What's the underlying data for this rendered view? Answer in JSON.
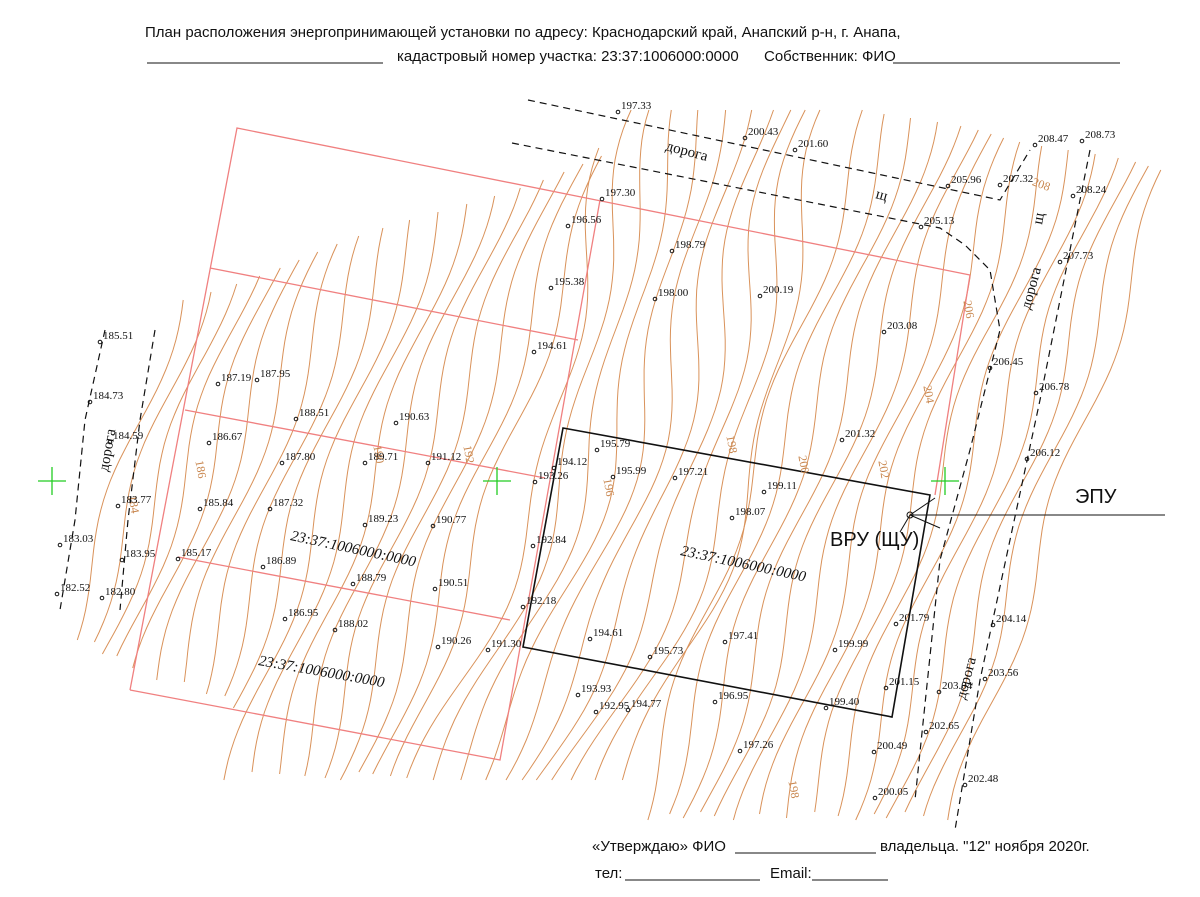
{
  "header": {
    "line1": "План расположения энергопринимающей установки по адресу: Краснодарский край, Анапский р-н, г. Анапа,",
    "cadastral": "кадастровый номер участка: 23:37:1006000:0000",
    "owner": "Собственник: ФИО"
  },
  "labels": {
    "epu": "ЭПУ",
    "vru": "ВРУ (ЩУ)"
  },
  "parcels": [
    "23:37:1006000:0000",
    "23:37:1006000:0000",
    "23:37:1006000:0000"
  ],
  "roads": [
    "дорога",
    "дорога",
    "дорога",
    "дорога"
  ],
  "shch": [
    "щ",
    "щ"
  ],
  "contour_labels": [
    "184",
    "186",
    "190",
    "192",
    "196",
    "198",
    "200",
    "202",
    "204",
    "206",
    "208",
    "198"
  ],
  "elevations": [
    "197.33",
    "200.43",
    "201.60",
    "208.47",
    "208.73",
    "205.96",
    "207.32",
    "208.24",
    "197.30",
    "196.56",
    "205.13",
    "198.79",
    "207.73",
    "195.38",
    "198.00",
    "200.19",
    "203.08",
    "194.61",
    "206.45",
    "187.19",
    "187.95",
    "185.51",
    "184.73",
    "206.78",
    "188.51",
    "190.63",
    "184.59",
    "186.67",
    "201.32",
    "195.79",
    "187.80",
    "189.71",
    "191.12",
    "194.12",
    "206.12",
    "195.99",
    "197.21",
    "193.26",
    "199.11",
    "183.77",
    "185.84",
    "187.32",
    "198.07",
    "190.77",
    "189.23",
    "183.03",
    "192.84",
    "183.95",
    "185.17",
    "186.89",
    "188.79",
    "190.51",
    "182.52",
    "182.80",
    "192.18",
    "204.14",
    "186.95",
    "188.02",
    "201.79",
    "194.61",
    "197.41",
    "190.26",
    "191.30",
    "199.99",
    "195.73",
    "203.56",
    "201.15",
    "203.04",
    "193.93",
    "192.95",
    "194.77",
    "196.95",
    "199.40",
    "202.65",
    "197.26",
    "200.49",
    "202.48",
    "200.05"
  ],
  "footer": {
    "approve": "«Утверждаю» ФИО",
    "owner_suffix": "владельца. \"12\" ноября 2020г.",
    "phone": "тел:",
    "email": "Email:"
  }
}
